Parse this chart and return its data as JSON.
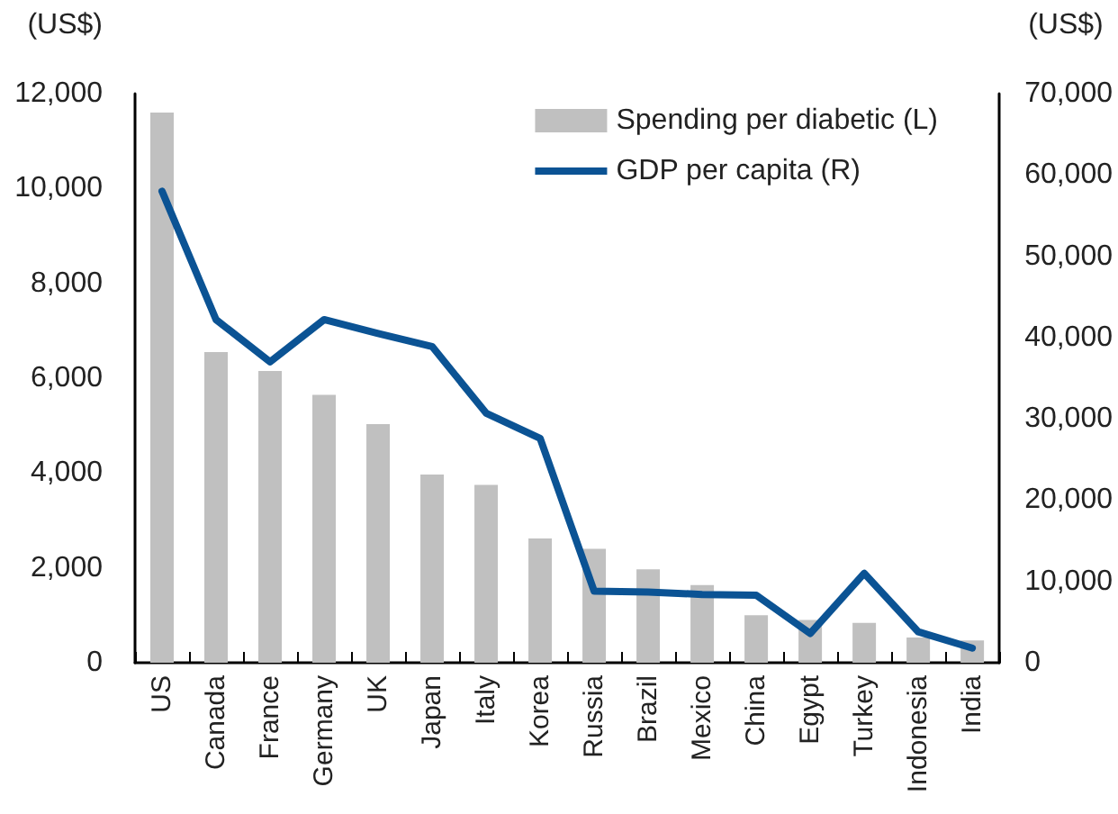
{
  "chart_data": {
    "type": "bar",
    "ylabel": "(US$)",
    "y2label": "(US$)",
    "categories": [
      "US",
      "Canada",
      "France",
      "Germany",
      "UK",
      "Japan",
      "Italy",
      "Korea",
      "Russia",
      "Brazil",
      "Mexico",
      "China",
      "Egypt",
      "Turkey",
      "Indonesia",
      "India"
    ],
    "series": [
      {
        "name": "Spending per diabetic (L)",
        "color": "#c0c0c0",
        "values": [
          11600,
          6550,
          6150,
          5650,
          5030,
          3970,
          3750,
          2620,
          2400,
          1970,
          1640,
          1000,
          900,
          840,
          530,
          470
        ]
      },
      {
        "name": "GDP per capita (R)",
        "type": "line",
        "axis": "y2",
        "color": "#0b5394",
        "values": [
          58000,
          42200,
          37000,
          42200,
          40500,
          38900,
          30700,
          27600,
          8800,
          8700,
          8400,
          8300,
          3600,
          11000,
          3800,
          1800
        ]
      }
    ],
    "ylim": [
      0,
      12000
    ],
    "yticks": [
      0,
      {
        "value": 2000,
        "label": "2,000"
      },
      {
        "value": 4000,
        "label": "4,000"
      },
      {
        "value": 6000,
        "label": "6,000"
      },
      {
        "value": 8000,
        "label": "8,000"
      },
      {
        "value": 10000,
        "label": "10,000"
      },
      {
        "value": 12000,
        "label": "12,000"
      }
    ],
    "y2lim": [
      0,
      70000
    ],
    "y2ticks": [
      0,
      {
        "value": 10000,
        "label": "10,000"
      },
      {
        "value": 20000,
        "label": "20,000"
      },
      {
        "value": 30000,
        "label": "30,000"
      },
      {
        "value": 40000,
        "label": "40,000"
      },
      {
        "value": 50000,
        "label": "50,000"
      },
      {
        "value": 60000,
        "label": "60,000"
      },
      {
        "value": 70000,
        "label": "70,000"
      }
    ],
    "grid": false,
    "legend": "top right",
    "marker": "none",
    "line_style": "solid"
  }
}
